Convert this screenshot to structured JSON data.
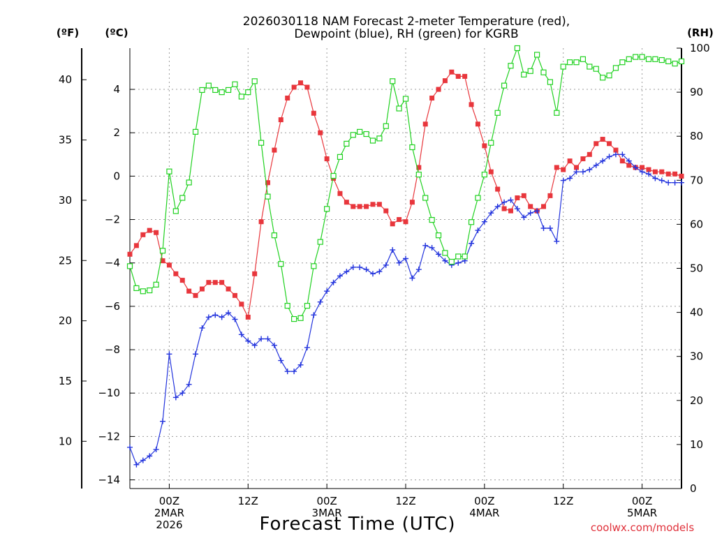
{
  "chart_data": {
    "type": "line",
    "title": [
      "2026030118 NAM Forecast 2-meter Temperature (red),",
      "Dewpoint (blue), RH (green) for KGRB"
    ],
    "xlabel": "Forecast Time (UTC)",
    "credit": "coolwx.com/models",
    "unit_labels": {
      "f": "(ºF)",
      "c": "(ºC)",
      "rh": "(RH)"
    },
    "x_unit": "hours after 2026-03-01 18Z",
    "xlim": [
      0,
      84
    ],
    "ylim_c": [
      -14.4,
      5.9
    ],
    "ylim_rh": [
      0,
      100
    ],
    "c_ticks": [
      4,
      2,
      0,
      -2,
      -4,
      -6,
      -8,
      -10,
      -12,
      -14
    ],
    "c_tick_labels": [
      "4",
      "2",
      "0",
      "−2",
      "−4",
      "−6",
      "−8",
      "−10",
      "−12",
      "−14"
    ],
    "f_ticks": [
      40,
      35,
      30,
      25,
      20,
      15,
      10
    ],
    "rh_ticks": [
      100,
      90,
      80,
      70,
      60,
      50,
      40,
      30,
      20,
      10,
      0
    ],
    "x_ticks": [
      {
        "x": 6,
        "lines": [
          "00Z",
          "2MAR",
          "2026"
        ]
      },
      {
        "x": 18,
        "lines": [
          "12Z"
        ]
      },
      {
        "x": 30,
        "lines": [
          "00Z",
          "3MAR"
        ]
      },
      {
        "x": 42,
        "lines": [
          "12Z"
        ]
      },
      {
        "x": 54,
        "lines": [
          "00Z",
          "4MAR"
        ]
      },
      {
        "x": 66,
        "lines": [
          "12Z"
        ]
      },
      {
        "x": 78,
        "lines": [
          "00Z",
          "5MAR"
        ]
      }
    ],
    "series": [
      {
        "name": "2-meter Temperature",
        "axis": "c",
        "color": "#e8363c",
        "marker": "filled-square",
        "x": [
          0,
          1,
          2,
          3,
          4,
          5,
          6,
          7,
          8,
          9,
          10,
          11,
          12,
          13,
          14,
          15,
          16,
          17,
          18,
          19,
          20,
          21,
          22,
          23,
          24,
          25,
          26,
          27,
          28,
          29,
          30,
          31,
          32,
          33,
          34,
          35,
          36,
          37,
          38,
          39,
          40,
          41,
          42,
          43,
          44,
          45,
          46,
          47,
          48,
          49,
          50,
          51,
          52,
          53,
          54,
          55,
          56,
          57,
          58,
          59,
          60,
          61,
          62,
          63,
          64,
          65,
          66,
          67,
          68,
          69,
          70,
          71,
          72,
          73,
          74,
          75,
          76,
          77,
          78,
          79,
          80,
          81,
          82,
          83,
          84
        ],
        "values": [
          -3.6,
          -3.2,
          -2.7,
          -2.5,
          -2.6,
          -3.9,
          -4.1,
          -4.5,
          -4.8,
          -5.3,
          -5.5,
          -5.2,
          -4.9,
          -4.9,
          -4.9,
          -5.2,
          -5.5,
          -5.9,
          -6.5,
          -4.5,
          -2.1,
          -0.3,
          1.2,
          2.6,
          3.6,
          4.1,
          4.3,
          4.1,
          2.9,
          2.0,
          0.8,
          -0.1,
          -0.8,
          -1.2,
          -1.4,
          -1.4,
          -1.4,
          -1.3,
          -1.3,
          -1.6,
          -2.2,
          -2.0,
          -2.1,
          -1.2,
          0.4,
          2.4,
          3.6,
          4.0,
          4.4,
          4.8,
          4.6,
          4.6,
          3.3,
          2.4,
          1.4,
          0.2,
          -0.6,
          -1.5,
          -1.6,
          -1.0,
          -0.9,
          -1.4,
          -1.6,
          -1.4,
          -0.9,
          0.4,
          0.3,
          0.7,
          0.4,
          0.8,
          1.0,
          1.5,
          1.7,
          1.5,
          1.2,
          0.7,
          0.5,
          0.4,
          0.4,
          0.3,
          0.2,
          0.2,
          0.1,
          0.1,
          0.0
        ]
      },
      {
        "name": "Dewpoint",
        "axis": "c",
        "color": "#2233dd",
        "marker": "plus",
        "x": [
          0,
          1,
          2,
          3,
          4,
          5,
          6,
          7,
          8,
          9,
          10,
          11,
          12,
          13,
          14,
          15,
          16,
          17,
          18,
          19,
          20,
          21,
          22,
          23,
          24,
          25,
          26,
          27,
          28,
          29,
          30,
          31,
          32,
          33,
          34,
          35,
          36,
          37,
          38,
          39,
          40,
          41,
          42,
          43,
          44,
          45,
          46,
          47,
          48,
          49,
          50,
          51,
          52,
          53,
          54,
          55,
          56,
          57,
          58,
          59,
          60,
          61,
          62,
          63,
          64,
          65,
          66,
          67,
          68,
          69,
          70,
          71,
          72,
          73,
          74,
          75,
          76,
          77,
          78,
          79,
          80,
          81,
          82,
          83,
          84
        ],
        "values": [
          -12.5,
          -13.3,
          -13.1,
          -12.9,
          -12.6,
          -11.3,
          -8.2,
          -10.2,
          -10.0,
          -9.6,
          -8.2,
          -7.0,
          -6.5,
          -6.4,
          -6.5,
          -6.3,
          -6.6,
          -7.3,
          -7.6,
          -7.8,
          -7.5,
          -7.5,
          -7.8,
          -8.5,
          -9.0,
          -9.0,
          -8.7,
          -7.9,
          -6.4,
          -5.8,
          -5.3,
          -4.9,
          -4.6,
          -4.4,
          -4.2,
          -4.2,
          -4.3,
          -4.5,
          -4.4,
          -4.1,
          -3.4,
          -4.0,
          -3.8,
          -4.7,
          -4.3,
          -3.2,
          -3.3,
          -3.6,
          -3.9,
          -4.1,
          -4.0,
          -3.9,
          -3.1,
          -2.5,
          -2.1,
          -1.7,
          -1.4,
          -1.2,
          -1.1,
          -1.5,
          -1.9,
          -1.7,
          -1.6,
          -2.4,
          -2.4,
          -3.0,
          -0.2,
          -0.1,
          0.2,
          0.2,
          0.3,
          0.5,
          0.7,
          0.9,
          1.0,
          1.0,
          0.7,
          0.4,
          0.2,
          0.1,
          -0.1,
          -0.2,
          -0.3,
          -0.3,
          -0.3
        ]
      },
      {
        "name": "RH",
        "axis": "rh",
        "color": "#1fd11f",
        "marker": "open-square",
        "x": [
          0,
          1,
          2,
          3,
          4,
          5,
          6,
          7,
          8,
          9,
          10,
          11,
          12,
          13,
          14,
          15,
          16,
          17,
          18,
          19,
          20,
          21,
          22,
          23,
          24,
          25,
          26,
          27,
          28,
          29,
          30,
          31,
          32,
          33,
          34,
          35,
          36,
          37,
          38,
          39,
          40,
          41,
          42,
          43,
          44,
          45,
          46,
          47,
          48,
          49,
          50,
          51,
          52,
          53,
          54,
          55,
          56,
          57,
          58,
          59,
          60,
          61,
          62,
          63,
          64,
          65,
          66,
          67,
          68,
          69,
          70,
          71,
          72,
          73,
          74,
          75,
          76,
          77,
          78,
          79,
          80,
          81,
          82,
          83,
          84
        ],
        "values": [
          50.5,
          45.5,
          44.8,
          45.0,
          46.3,
          54.0,
          72.0,
          63.0,
          66.0,
          69.5,
          81.0,
          90.5,
          91.5,
          90.5,
          90.0,
          90.5,
          91.8,
          89.0,
          90.0,
          92.5,
          78.5,
          66.3,
          57.5,
          51.0,
          41.5,
          38.5,
          38.7,
          41.5,
          50.5,
          56.0,
          63.5,
          71.0,
          75.3,
          78.3,
          80.3,
          81.0,
          80.5,
          79.0,
          79.5,
          82.3,
          92.5,
          86.3,
          88.5,
          77.5,
          71.3,
          66.0,
          61.0,
          57.5,
          53.5,
          51.5,
          52.7,
          52.7,
          60.5,
          66.0,
          71.3,
          78.5,
          85.3,
          91.5,
          96.0,
          100.0,
          94.0,
          94.8,
          98.5,
          94.5,
          92.3,
          85.3,
          95.8,
          96.8,
          96.8,
          97.5,
          95.8,
          95.3,
          93.3,
          93.8,
          95.5,
          96.8,
          97.5,
          98.0,
          98.0,
          97.5,
          97.5,
          97.3,
          97.0,
          96.5,
          97.0
        ]
      }
    ],
    "grid": true
  }
}
